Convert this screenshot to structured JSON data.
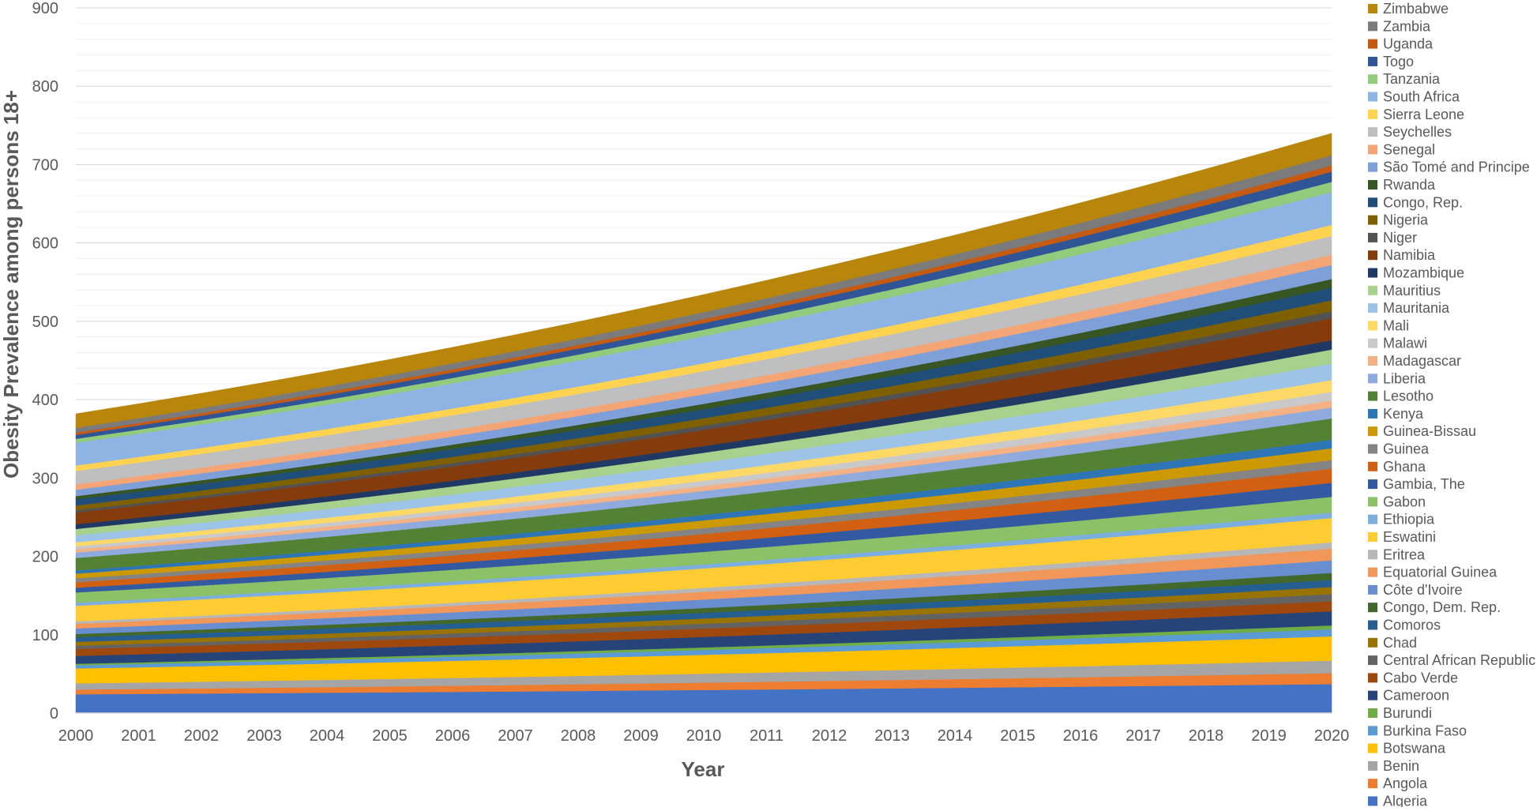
{
  "chart_data": {
    "type": "area",
    "stacked": true,
    "title": "",
    "xlabel": "Year",
    "ylabel": "Obesity Prevalence among persons 18+",
    "x": [
      2000,
      2001,
      2002,
      2003,
      2004,
      2005,
      2006,
      2007,
      2008,
      2009,
      2010,
      2011,
      2012,
      2013,
      2014,
      2015,
      2016,
      2017,
      2018,
      2019,
      2020
    ],
    "ylim": [
      0,
      900
    ],
    "yticks": [
      0,
      100,
      200,
      300,
      400,
      500,
      600,
      700,
      800,
      900
    ],
    "grid": "major-and-minor horizontal",
    "legend_position": "right",
    "series": [
      {
        "name": "Algeria",
        "color": "#4472C4",
        "start": 24.0,
        "end": 37.0
      },
      {
        "name": "Angola",
        "color": "#ED7D31",
        "start": 6.0,
        "end": 14.0
      },
      {
        "name": "Benin",
        "color": "#A5A5A5",
        "start": 8.0,
        "end": 16.0
      },
      {
        "name": "Botswana",
        "color": "#FFC000",
        "start": 19.0,
        "end": 31.0
      },
      {
        "name": "Burkina Faso",
        "color": "#5B9BD5",
        "start": 4.0,
        "end": 9.0
      },
      {
        "name": "Burundi",
        "color": "#70AD47",
        "start": 2.0,
        "end": 5.0
      },
      {
        "name": "Cameroon",
        "color": "#264478",
        "start": 10.0,
        "end": 18.0
      },
      {
        "name": "Cabo Verde",
        "color": "#9E480E",
        "start": 9.0,
        "end": 13.0
      },
      {
        "name": "Central African Republic",
        "color": "#636363",
        "start": 4.0,
        "end": 9.0
      },
      {
        "name": "Chad",
        "color": "#997300",
        "start": 5.0,
        "end": 9.0
      },
      {
        "name": "Comoros",
        "color": "#255E91",
        "start": 6.0,
        "end": 9.0
      },
      {
        "name": "Congo, Dem. Rep.",
        "color": "#43682B",
        "start": 4.0,
        "end": 9.0
      },
      {
        "name": "Côte d'Ivoire",
        "color": "#698ED0",
        "start": 7.0,
        "end": 16.0
      },
      {
        "name": "Equatorial Guinea",
        "color": "#F1975A",
        "start": 6.0,
        "end": 15.0
      },
      {
        "name": "Eritrea",
        "color": "#B7B7B7",
        "start": 3.0,
        "end": 8.0
      },
      {
        "name": "Eswatini",
        "color": "#FFCD33",
        "start": 20.0,
        "end": 31.0
      },
      {
        "name": "Ethiopia",
        "color": "#7CAFDD",
        "start": 4.0,
        "end": 7.0
      },
      {
        "name": "Gabon",
        "color": "#8CC168",
        "start": 13.0,
        "end": 20.0
      },
      {
        "name": "Gambia, The",
        "color": "#335AA1",
        "start": 6.0,
        "end": 18.0
      },
      {
        "name": "Ghana",
        "color": "#D26012",
        "start": 7.0,
        "end": 18.0
      },
      {
        "name": "Guinea",
        "color": "#848484",
        "start": 5.0,
        "end": 11.0
      },
      {
        "name": "Guinea-Bissau",
        "color": "#CC9A00",
        "start": 6.0,
        "end": 15.0
      },
      {
        "name": "Kenya",
        "color": "#2E75B6",
        "start": 4.0,
        "end": 11.0
      },
      {
        "name": "Lesotho",
        "color": "#548235",
        "start": 16.0,
        "end": 27.0
      },
      {
        "name": "Liberia",
        "color": "#8FAADC",
        "start": 7.0,
        "end": 14.0
      },
      {
        "name": "Madagascar",
        "color": "#F4B183",
        "start": 4.0,
        "end": 9.0
      },
      {
        "name": "Malawi",
        "color": "#C9C9C9",
        "start": 4.0,
        "end": 11.0
      },
      {
        "name": "Mali",
        "color": "#FFD966",
        "start": 5.0,
        "end": 15.0
      },
      {
        "name": "Mauritania",
        "color": "#9DC3E6",
        "start": 9.0,
        "end": 21.0
      },
      {
        "name": "Mauritius",
        "color": "#A9D18E",
        "start": 8.0,
        "end": 18.0
      },
      {
        "name": "Mozambique",
        "color": "#203864",
        "start": 6.0,
        "end": 12.0
      },
      {
        "name": "Namibia",
        "color": "#843C0C",
        "start": 15.0,
        "end": 28.0
      },
      {
        "name": "Niger",
        "color": "#525252",
        "start": 3.0,
        "end": 9.0
      },
      {
        "name": "Nigeria",
        "color": "#7F6000",
        "start": 6.0,
        "end": 14.0
      },
      {
        "name": "Congo, Rep.",
        "color": "#1F4E79",
        "start": 8.0,
        "end": 16.0
      },
      {
        "name": "Rwanda",
        "color": "#375623",
        "start": 4.0,
        "end": 11.0
      },
      {
        "name": "São Tomé and Principe",
        "color": "#7F9FD9",
        "start": 8.0,
        "end": 18.0
      },
      {
        "name": "Senegal",
        "color": "#F4A576",
        "start": 7.0,
        "end": 13.0
      },
      {
        "name": "Seychelles",
        "color": "#BFBFBF",
        "start": 17.0,
        "end": 24.0
      },
      {
        "name": "Sierra Leone",
        "color": "#FFD34F",
        "start": 7.0,
        "end": 14.0
      },
      {
        "name": "South Africa",
        "color": "#8EB4E3",
        "start": 29.0,
        "end": 42.0
      },
      {
        "name": "Tanzania",
        "color": "#93CB7D",
        "start": 5.0,
        "end": 13.0
      },
      {
        "name": "Togo",
        "color": "#2F5597",
        "start": 5.0,
        "end": 13.0
      },
      {
        "name": "Uganda",
        "color": "#C55A11",
        "start": 3.0,
        "end": 8.0
      },
      {
        "name": "Zambia",
        "color": "#7B7B7B",
        "start": 6.0,
        "end": 13.0
      },
      {
        "name": "Zimbabwe",
        "color": "#B8860B",
        "start": 18.0,
        "end": 28.0
      }
    ]
  }
}
